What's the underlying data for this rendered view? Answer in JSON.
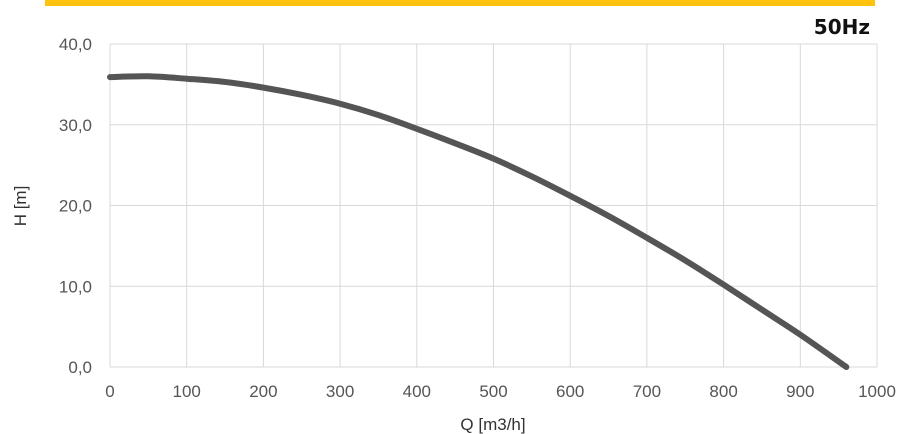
{
  "chart_data": {
    "type": "line",
    "frequency_label": "50Hz",
    "xlabel": "Q [m3/h]",
    "ylabel": "H [m]",
    "xlim": [
      0,
      1000
    ],
    "ylim": [
      0,
      40
    ],
    "x_ticks": [
      "0",
      "100",
      "200",
      "300",
      "400",
      "500",
      "600",
      "700",
      "800",
      "900",
      "1000"
    ],
    "y_ticks": [
      "0,0",
      "10,0",
      "20,0",
      "30,0",
      "40,0"
    ],
    "grid": true,
    "accent_color": "#FFC20E",
    "series": [
      {
        "color": "#555555",
        "x": [
          0,
          50,
          100,
          150,
          200,
          250,
          300,
          350,
          400,
          450,
          500,
          550,
          600,
          650,
          700,
          750,
          800,
          850,
          900,
          960
        ],
        "y": [
          35.9,
          36.0,
          35.7,
          35.3,
          34.6,
          33.7,
          32.6,
          31.2,
          29.5,
          27.7,
          25.8,
          23.6,
          21.2,
          18.7,
          16.0,
          13.2,
          10.2,
          7.1,
          4.0,
          0.0
        ]
      }
    ]
  }
}
